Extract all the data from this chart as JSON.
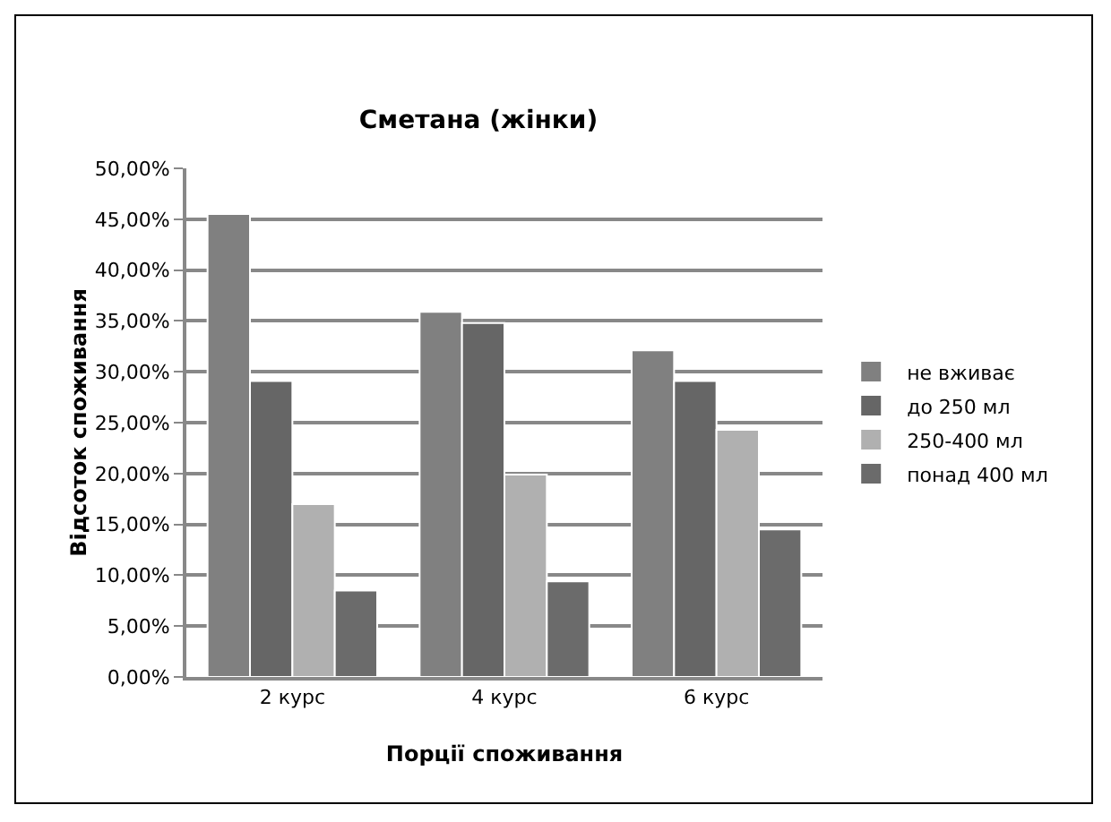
{
  "chart_data": {
    "type": "bar",
    "title": "Сметана (жінки)",
    "xlabel": "Порції споживання",
    "ylabel": "Відсоток споживання",
    "categories": [
      "2 курс",
      "4 курс",
      "6 курс"
    ],
    "series": [
      {
        "name": "не вживає",
        "color": "#808080",
        "values": [
          45.5,
          35.9,
          32.1
        ]
      },
      {
        "name": "до 250 мл",
        "color": "#666666",
        "values": [
          29.1,
          34.8,
          29.1
        ]
      },
      {
        "name": "250-400 мл",
        "color": "#b0b0b0",
        "values": [
          17.0,
          19.9,
          24.3
        ]
      },
      {
        "name": "понад 400 мл",
        "color": "#6b6b6b",
        "values": [
          8.5,
          9.4,
          14.5
        ]
      }
    ],
    "ylim": [
      0,
      50
    ],
    "yticks": [
      {
        "value": 0,
        "label": "0,00%"
      },
      {
        "value": 5,
        "label": "5,00%"
      },
      {
        "value": 10,
        "label": "10,00%"
      },
      {
        "value": 15,
        "label": "15,00%"
      },
      {
        "value": 20,
        "label": "20,00%"
      },
      {
        "value": 25,
        "label": "25,00%"
      },
      {
        "value": 30,
        "label": "30,00%"
      },
      {
        "value": 35,
        "label": "35,00%"
      },
      {
        "value": 40,
        "label": "40,00%"
      },
      {
        "value": 45,
        "label": "45,00%"
      },
      {
        "value": 50,
        "label": "50,00%"
      }
    ],
    "grid": "y",
    "legend": "right"
  }
}
